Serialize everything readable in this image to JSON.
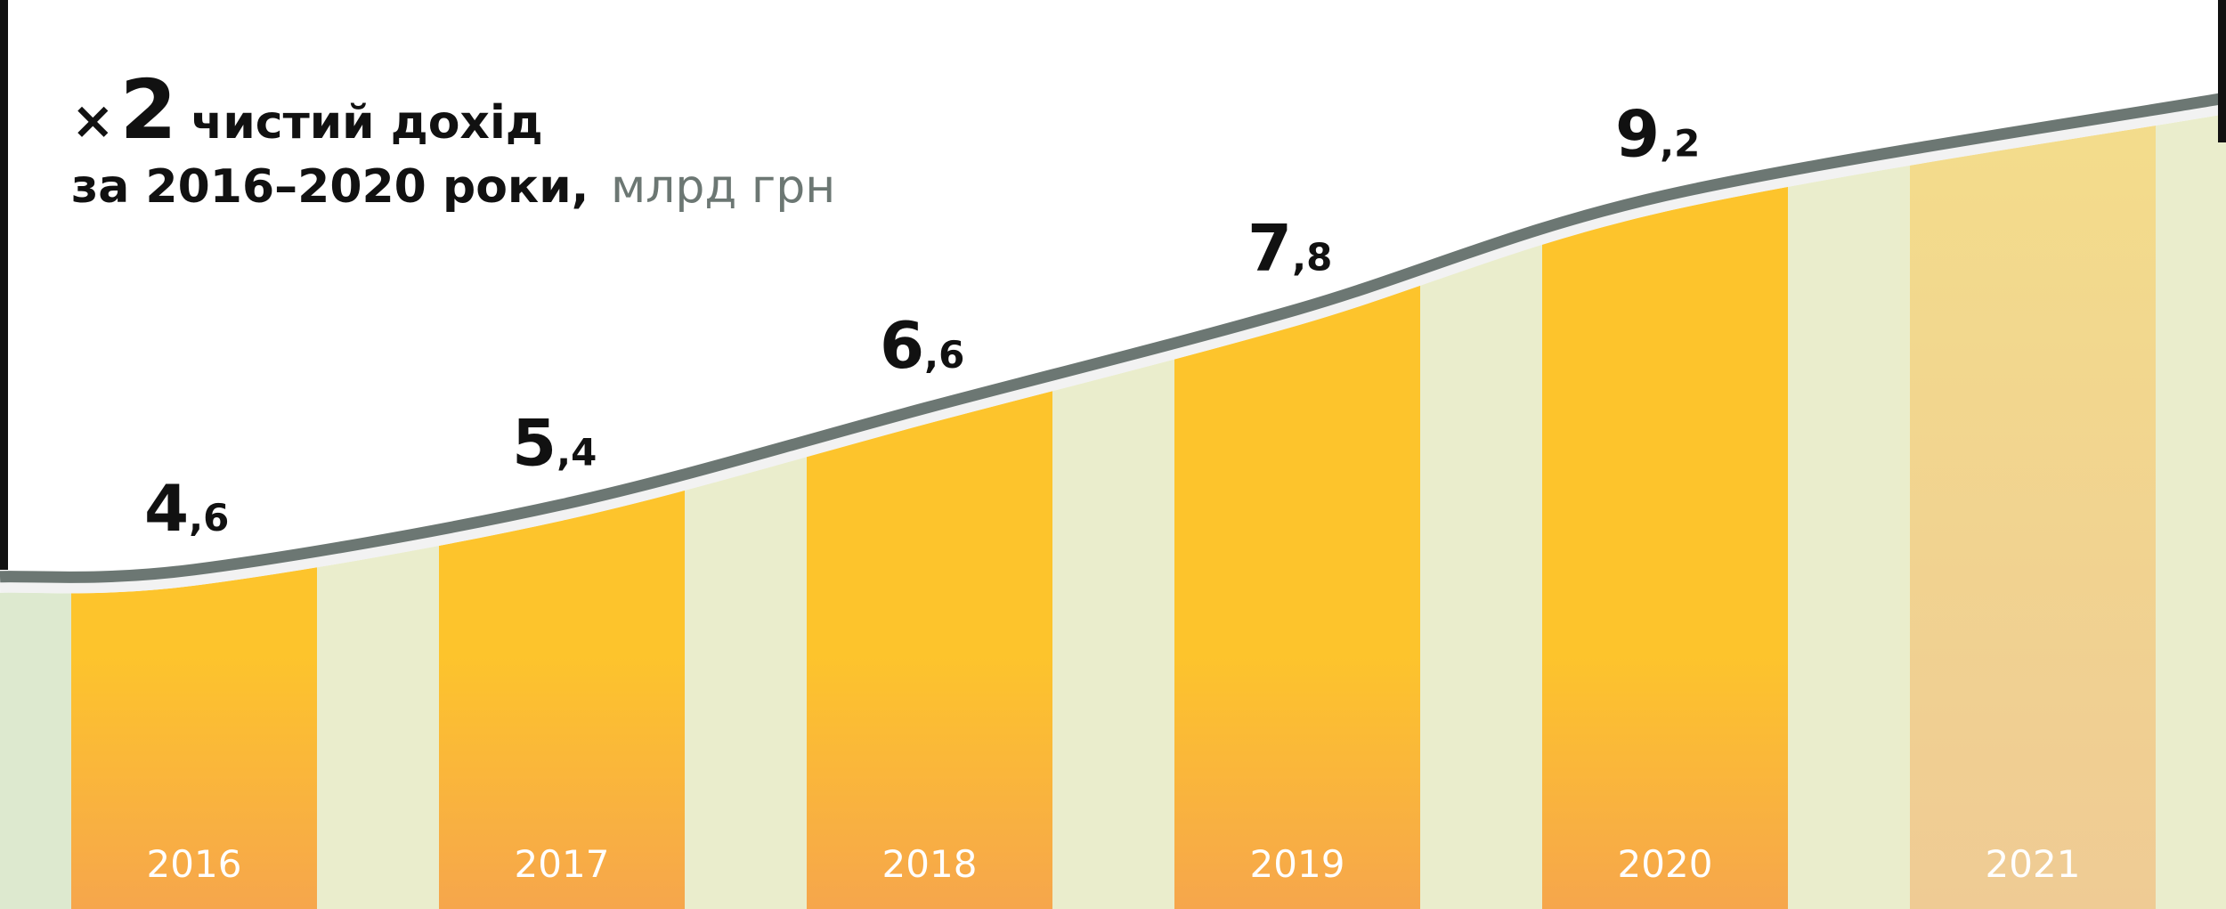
{
  "header": {
    "multiplier_icon": "×",
    "multiplier": "2",
    "title": "чистий дохід",
    "subtitle": "за 2016–2020 роки,",
    "units": "млрд грн"
  },
  "colors": {
    "bar_top": "#fdc42c",
    "bar_bottom": "#f6a64c",
    "bar_faded_top": "#f4df8a",
    "bar_faded_bottom": "#efcb94",
    "stripe_light": "#eaedcc",
    "stripe_first": "#dde9cf",
    "curve_line": "#6c7773",
    "curve_highlight": "#f2f2f2",
    "year_label": "#ffffff",
    "value_label": "#111111"
  },
  "chart_data": {
    "type": "bar",
    "title": "чистий дохід",
    "subtitle": "за 2016–2020 роки, млрд грн",
    "categories": [
      "2016",
      "2017",
      "2018",
      "2019",
      "2020",
      "2021"
    ],
    "values": [
      4.6,
      5.4,
      6.6,
      7.8,
      9.2,
      null
    ],
    "value_labels": [
      {
        "int": "4",
        "dec": ",6"
      },
      {
        "int": "5",
        "dec": ",4"
      },
      {
        "int": "6",
        "dec": ",6"
      },
      {
        "int": "7",
        "dec": ",8"
      },
      {
        "int": "9",
        "dec": ",2"
      },
      {
        "int": "",
        "dec": ""
      }
    ],
    "faded": [
      false,
      false,
      false,
      false,
      false,
      true
    ],
    "trend_end_value": 10.4,
    "ylim": [
      0,
      10.4
    ],
    "grid": false,
    "legend": "none"
  }
}
